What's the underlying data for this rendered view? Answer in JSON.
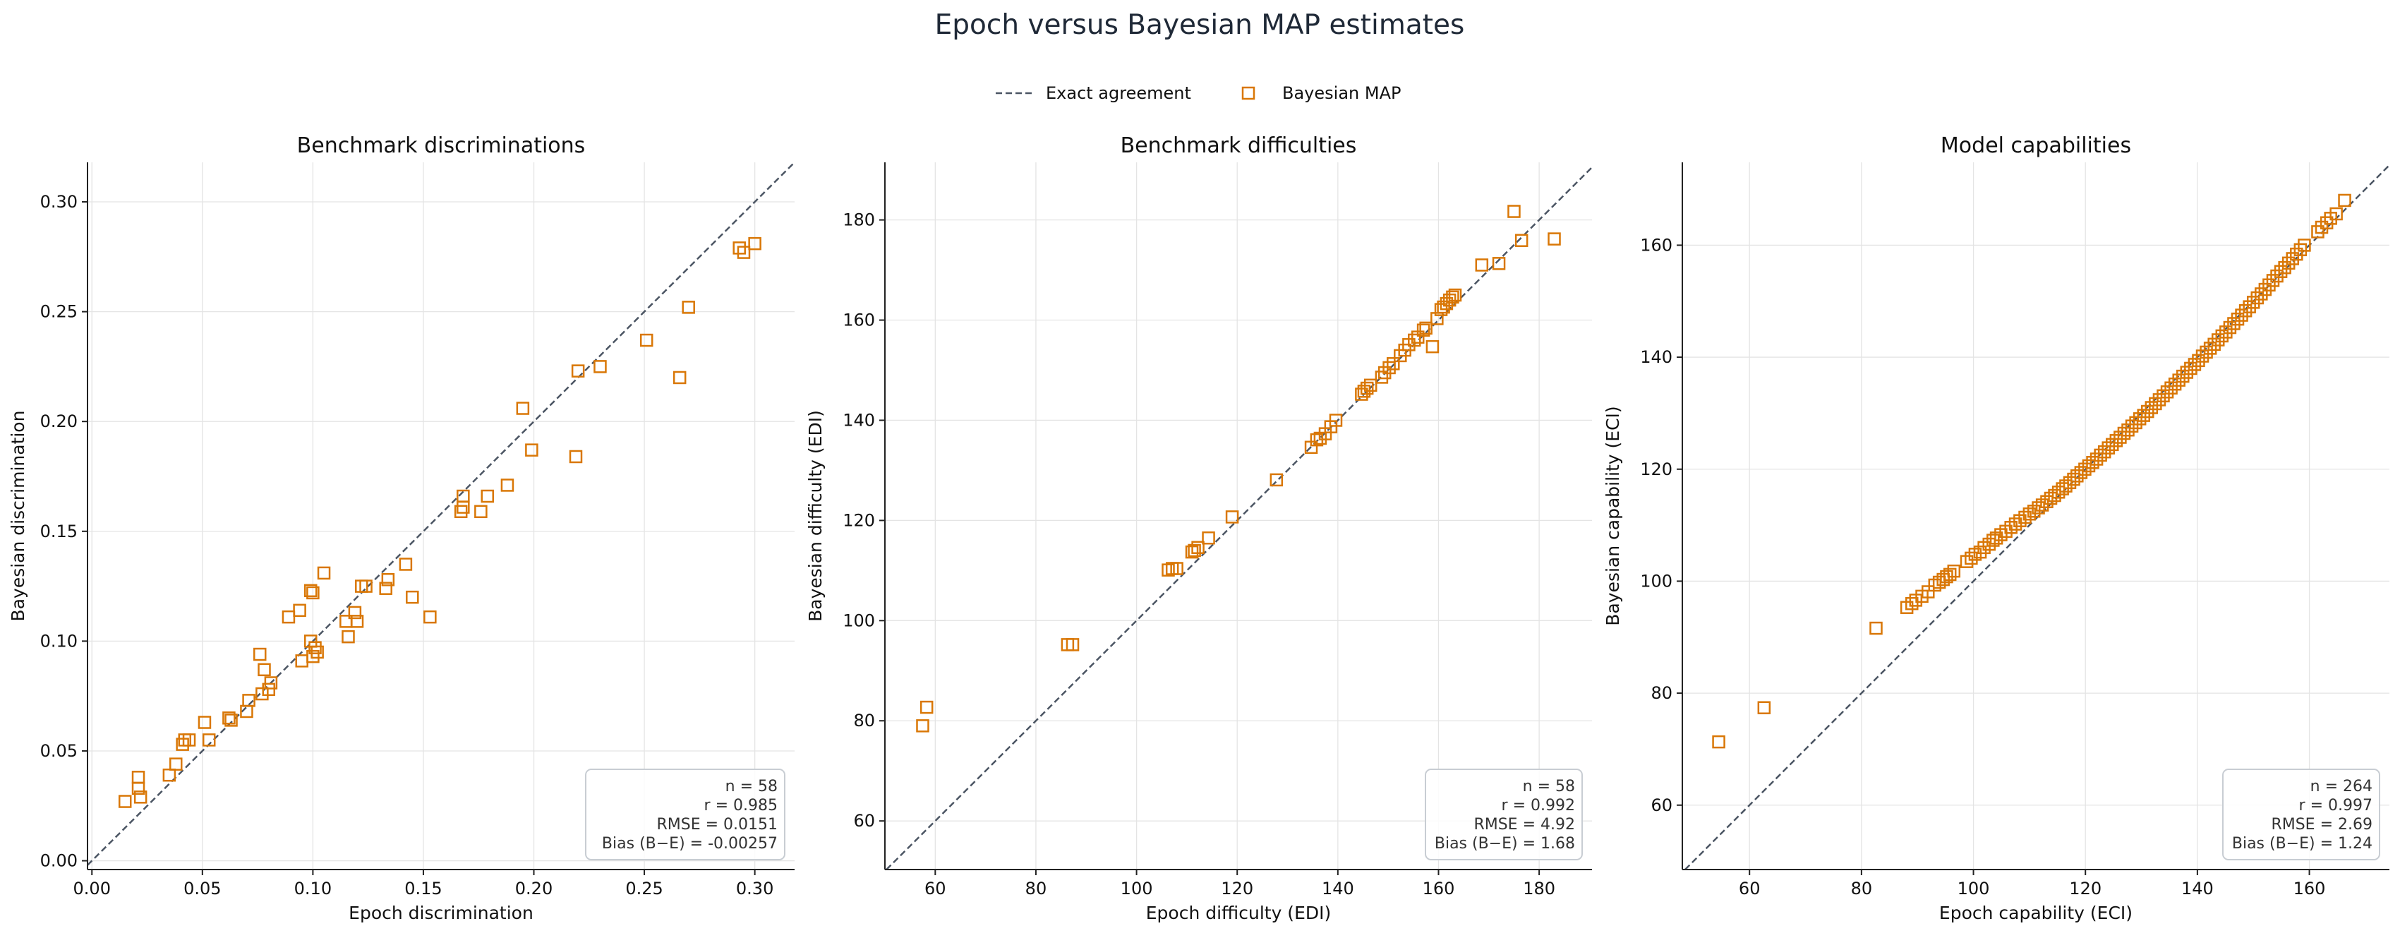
{
  "title": "Epoch versus Bayesian MAP estimates",
  "legend": {
    "placement": "top-center",
    "line_label": "Exact agreement",
    "marker_label": "Bayesian MAP"
  },
  "colors": {
    "marker": "#d97706",
    "reference_line": "#4b5563",
    "title": "#1f2937",
    "stats_border": "#c8cdd3"
  },
  "chart_data": [
    {
      "type": "scatter",
      "title": "Benchmark discriminations",
      "xlabel": "Epoch discrimination",
      "ylabel": "Bayesian discrimination",
      "xlim": [
        -0.002,
        0.318
      ],
      "ylim": [
        -0.004,
        0.318
      ],
      "xticks": [
        0.0,
        0.05,
        0.1,
        0.15,
        0.2,
        0.25,
        0.3
      ],
      "yticks": [
        0.0,
        0.05,
        0.1,
        0.15,
        0.2,
        0.25,
        0.3
      ],
      "tick_decimals": 2,
      "grid": true,
      "reference_line": "y = x",
      "stats": [
        "n = 58",
        "r = 0.985",
        "RMSE = 0.0151",
        "Bias (B−E) = -0.00257"
      ],
      "points": [
        [
          0.015,
          0.027
        ],
        [
          0.021,
          0.038
        ],
        [
          0.021,
          0.033
        ],
        [
          0.022,
          0.029
        ],
        [
          0.035,
          0.039
        ],
        [
          0.038,
          0.044
        ],
        [
          0.041,
          0.053
        ],
        [
          0.042,
          0.055
        ],
        [
          0.044,
          0.055
        ],
        [
          0.051,
          0.063
        ],
        [
          0.053,
          0.055
        ],
        [
          0.062,
          0.065
        ],
        [
          0.063,
          0.064
        ],
        [
          0.07,
          0.068
        ],
        [
          0.071,
          0.073
        ],
        [
          0.076,
          0.094
        ],
        [
          0.077,
          0.076
        ],
        [
          0.078,
          0.087
        ],
        [
          0.08,
          0.078
        ],
        [
          0.081,
          0.081
        ],
        [
          0.089,
          0.111
        ],
        [
          0.094,
          0.114
        ],
        [
          0.095,
          0.091
        ],
        [
          0.099,
          0.123
        ],
        [
          0.1,
          0.122
        ],
        [
          0.099,
          0.1
        ],
        [
          0.1,
          0.093
        ],
        [
          0.101,
          0.097
        ],
        [
          0.102,
          0.095
        ],
        [
          0.105,
          0.131
        ],
        [
          0.115,
          0.109
        ],
        [
          0.116,
          0.102
        ],
        [
          0.119,
          0.113
        ],
        [
          0.12,
          0.109
        ],
        [
          0.122,
          0.125
        ],
        [
          0.124,
          0.125
        ],
        [
          0.133,
          0.124
        ],
        [
          0.134,
          0.128
        ],
        [
          0.142,
          0.135
        ],
        [
          0.145,
          0.12
        ],
        [
          0.153,
          0.111
        ],
        [
          0.167,
          0.159
        ],
        [
          0.168,
          0.161
        ],
        [
          0.168,
          0.166
        ],
        [
          0.176,
          0.159
        ],
        [
          0.179,
          0.166
        ],
        [
          0.188,
          0.171
        ],
        [
          0.195,
          0.206
        ],
        [
          0.199,
          0.187
        ],
        [
          0.219,
          0.184
        ],
        [
          0.22,
          0.223
        ],
        [
          0.23,
          0.225
        ],
        [
          0.251,
          0.237
        ],
        [
          0.266,
          0.22
        ],
        [
          0.27,
          0.252
        ],
        [
          0.293,
          0.279
        ],
        [
          0.295,
          0.277
        ],
        [
          0.3,
          0.281
        ]
      ]
    },
    {
      "type": "scatter",
      "title": "Benchmark difficulties",
      "xlabel": "Epoch difficulty (EDI)",
      "ylabel": "Bayesian difficulty (EDI)",
      "xlim": [
        50,
        190.5
      ],
      "ylim": [
        50.3,
        191.5
      ],
      "xticks": [
        60,
        80,
        100,
        120,
        140,
        160,
        180
      ],
      "yticks": [
        60,
        80,
        100,
        120,
        140,
        160,
        180
      ],
      "tick_decimals": 0,
      "grid": true,
      "reference_line": "y = x",
      "stats": [
        "n = 58",
        "r = 0.992",
        "RMSE = 4.92",
        "Bias (B−E) = 1.68"
      ],
      "points": [
        [
          57.5,
          79
        ],
        [
          58.3,
          82.7
        ],
        [
          86.3,
          95.2
        ],
        [
          87.3,
          95.2
        ],
        [
          106.3,
          110.1
        ],
        [
          107.1,
          110.4
        ],
        [
          108,
          110.4
        ],
        [
          111,
          113.7
        ],
        [
          111.5,
          114
        ],
        [
          112.2,
          114.6
        ],
        [
          114.3,
          116.5
        ],
        [
          119,
          120.7
        ],
        [
          127.8,
          128.1
        ],
        [
          134.7,
          134.6
        ],
        [
          135.8,
          136.1
        ],
        [
          136.5,
          136.4
        ],
        [
          137.5,
          137.3
        ],
        [
          138.6,
          138.7
        ],
        [
          139.6,
          140
        ],
        [
          144.7,
          145.2
        ],
        [
          145.2,
          145.8
        ],
        [
          145.8,
          146.4
        ],
        [
          146.5,
          147
        ],
        [
          148.7,
          148.6
        ],
        [
          149.3,
          149.5
        ],
        [
          150.2,
          150.5
        ],
        [
          151,
          151.3
        ],
        [
          152.4,
          152.9
        ],
        [
          153.3,
          154
        ],
        [
          154.1,
          155.1
        ],
        [
          155.2,
          156
        ],
        [
          155.9,
          156.6
        ],
        [
          157,
          158
        ],
        [
          157.5,
          158.4
        ],
        [
          158.8,
          154.7
        ],
        [
          159.7,
          160.3
        ],
        [
          160.5,
          162.1
        ],
        [
          161,
          162.6
        ],
        [
          161.6,
          163.3
        ],
        [
          162.2,
          164
        ],
        [
          162.8,
          164.6
        ],
        [
          163.3,
          165
        ],
        [
          168.6,
          171
        ],
        [
          172,
          171.3
        ],
        [
          175,
          181.7
        ],
        [
          176.5,
          175.9
        ],
        [
          183,
          176.2
        ]
      ]
    },
    {
      "type": "scatter",
      "title": "Model capabilities",
      "xlabel": "Epoch capability (ECI)",
      "ylabel": "Bayesian capability (ECI)",
      "xlim": [
        48,
        174.3
      ],
      "ylim": [
        48.5,
        174.8
      ],
      "xticks": [
        60,
        80,
        100,
        120,
        140,
        160
      ],
      "yticks": [
        60,
        80,
        100,
        120,
        140,
        160
      ],
      "tick_decimals": 0,
      "grid": true,
      "reference_line": "y = x",
      "stats": [
        "n = 264",
        "r = 0.997",
        "RMSE = 2.69",
        "Bias (B−E) = 1.24"
      ],
      "points": [
        [
          54.5,
          71.3
        ],
        [
          62.6,
          77.4
        ],
        [
          82.6,
          91.6
        ],
        [
          88.1,
          95.3
        ],
        [
          89,
          96
        ],
        [
          89.7,
          96.6
        ],
        [
          90.8,
          97.3
        ],
        [
          91.9,
          98.1
        ],
        [
          93.1,
          99.3
        ],
        [
          93.9,
          99.8
        ],
        [
          94.6,
          100.3
        ],
        [
          95.2,
          100.8
        ],
        [
          95.8,
          101.2
        ],
        [
          96.5,
          101.8
        ],
        [
          98.8,
          103.5
        ],
        [
          99.6,
          104.1
        ],
        [
          100.3,
          104.8
        ],
        [
          101.2,
          105.2
        ],
        [
          101.9,
          106
        ],
        [
          102.8,
          106.6
        ],
        [
          103.5,
          107.3
        ],
        [
          104.1,
          107.7
        ],
        [
          104.9,
          108.3
        ],
        [
          105.8,
          108.9
        ],
        [
          106.7,
          109.6
        ],
        [
          107.5,
          110.2
        ],
        [
          108.3,
          110.8
        ],
        [
          109.2,
          111.4
        ],
        [
          110,
          112
        ],
        [
          110.8,
          112.5
        ],
        [
          111.6,
          113.1
        ],
        [
          112.3,
          113.6
        ],
        [
          113.1,
          114.2
        ],
        [
          113.8,
          114.8
        ],
        [
          114.5,
          115.3
        ],
        [
          115.2,
          115.9
        ],
        [
          115.9,
          116.5
        ],
        [
          116.5,
          117
        ],
        [
          117.2,
          117.6
        ],
        [
          117.9,
          118.2
        ],
        [
          118.5,
          118.8
        ],
        [
          119.2,
          119.4
        ],
        [
          119.9,
          120
        ],
        [
          120.6,
          120.6
        ],
        [
          121.3,
          121.2
        ],
        [
          122,
          121.8
        ],
        [
          122.7,
          122.5
        ],
        [
          123.4,
          123.1
        ],
        [
          124.1,
          123.8
        ],
        [
          124.8,
          124.4
        ],
        [
          125.5,
          125.1
        ],
        [
          126.2,
          125.7
        ],
        [
          126.9,
          126.4
        ],
        [
          127.6,
          127
        ],
        [
          128.3,
          127.7
        ],
        [
          129,
          128.3
        ],
        [
          129.7,
          129
        ],
        [
          130.4,
          129.6
        ],
        [
          131.1,
          130.3
        ],
        [
          131.8,
          131
        ],
        [
          132.5,
          131.7
        ],
        [
          133.2,
          132.4
        ],
        [
          133.9,
          133.1
        ],
        [
          134.6,
          133.8
        ],
        [
          135.3,
          134.5
        ],
        [
          136,
          135.2
        ],
        [
          136.7,
          135.9
        ],
        [
          137.4,
          136.6
        ],
        [
          138.1,
          137.3
        ],
        [
          138.8,
          138
        ],
        [
          139.5,
          138.7
        ],
        [
          140.2,
          139.4
        ],
        [
          140.9,
          140.2
        ],
        [
          141.6,
          140.9
        ],
        [
          142.3,
          141.6
        ],
        [
          143,
          142.3
        ],
        [
          143.7,
          143.1
        ],
        [
          144.4,
          143.8
        ],
        [
          145.1,
          144.5
        ],
        [
          145.8,
          145.3
        ],
        [
          146.5,
          146
        ],
        [
          147.2,
          146.8
        ],
        [
          147.9,
          147.5
        ],
        [
          148.6,
          148.3
        ],
        [
          149.3,
          149
        ],
        [
          150,
          149.8
        ],
        [
          150.7,
          150.6
        ],
        [
          151.4,
          151.3
        ],
        [
          152.1,
          152.1
        ],
        [
          152.8,
          152.9
        ],
        [
          153.5,
          153.7
        ],
        [
          154.2,
          154.5
        ],
        [
          154.9,
          155.3
        ],
        [
          155.6,
          156
        ],
        [
          156.3,
          156.8
        ],
        [
          157,
          157.6
        ],
        [
          157.7,
          158.4
        ],
        [
          158.4,
          159.2
        ],
        [
          159.1,
          160
        ],
        [
          161.5,
          162.4
        ],
        [
          162.2,
          163.2
        ],
        [
          163.1,
          164
        ],
        [
          163.8,
          164.8
        ],
        [
          164.8,
          165.6
        ],
        [
          166.3,
          168
        ]
      ]
    }
  ]
}
